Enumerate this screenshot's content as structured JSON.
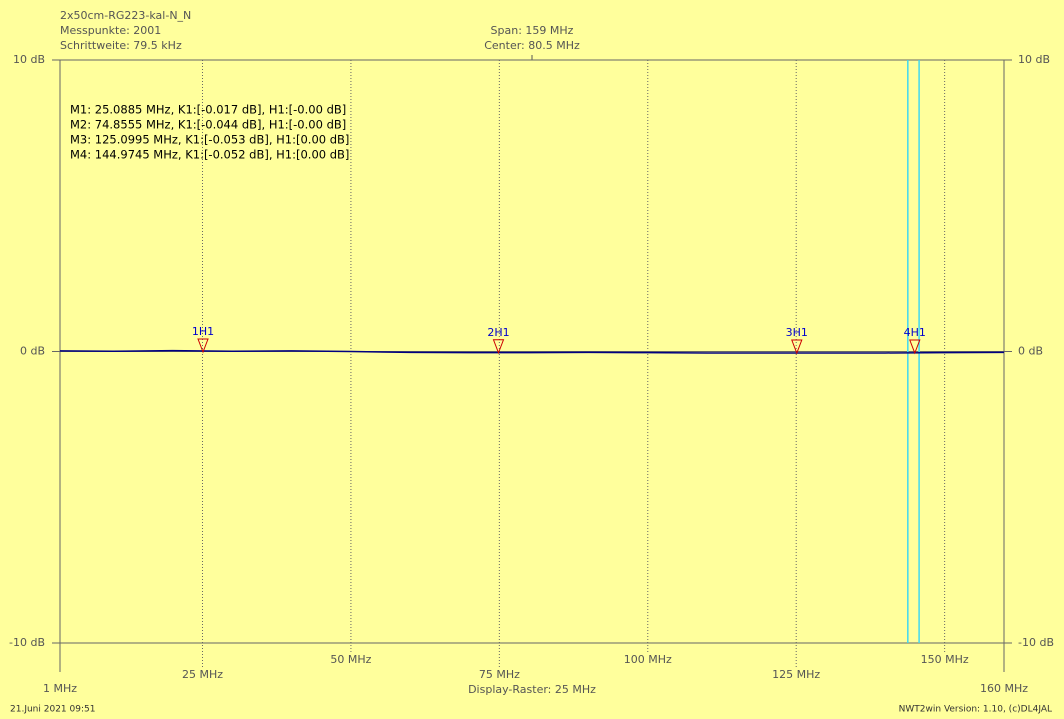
{
  "chart_data": {
    "type": "line",
    "title": "2x50cm-RG223-kal-N_N",
    "info": [
      "Messpunkte: 2001",
      "Schrittweite: 79.5 kHz"
    ],
    "span": "Span: 159 MHz",
    "center_label": "Center: 80.5 MHz",
    "raster": "Display-Raster: 25 MHz",
    "xlim": [
      1,
      160
    ],
    "ylim": [
      -10,
      10
    ],
    "xticks": [
      {
        "value": 1,
        "label": "1 MHz"
      },
      {
        "value": 25,
        "label": "25 MHz"
      },
      {
        "value": 50,
        "label": "50 MHz"
      },
      {
        "value": 75,
        "label": "75 MHz"
      },
      {
        "value": 100,
        "label": "100 MHz"
      },
      {
        "value": 125,
        "label": "125 MHz"
      },
      {
        "value": 150,
        "label": "150 MHz"
      },
      {
        "value": 160,
        "label": "160 MHz"
      }
    ],
    "yticks": [
      {
        "value": 10,
        "label": "10 dB"
      },
      {
        "value": 0,
        "label": "0 dB"
      },
      {
        "value": -10,
        "label": "-10 dB"
      }
    ],
    "grid": true,
    "series": [
      {
        "color": "#000080",
        "x": [
          1,
          10,
          20,
          30,
          40,
          50,
          60,
          70,
          80,
          90,
          100,
          110,
          120,
          130,
          140,
          150,
          160
        ],
        "values": [
          0.02,
          0.01,
          0.03,
          0.01,
          0.02,
          0,
          -0.03,
          -0.04,
          -0.04,
          -0.03,
          -0.04,
          -0.05,
          -0.05,
          -0.05,
          -0.05,
          -0.04,
          -0.03
        ]
      }
    ],
    "markers": [
      {
        "label": "1H1",
        "x": 25.0885,
        "value": -0.017,
        "text": "M1: 25.0885 MHz, K1:[-0.017 dB], H1:[-0.00 dB]"
      },
      {
        "label": "2H1",
        "x": 74.8555,
        "value": -0.044,
        "text": "M2: 74.8555 MHz, K1:[-0.044 dB], H1:[-0.00 dB]"
      },
      {
        "label": "3H1",
        "x": 125.0995,
        "value": -0.053,
        "text": "M3: 125.0995 MHz, K1:[-0.053 dB], H1:[0.00 dB]"
      },
      {
        "label": "4H1",
        "x": 144.9745,
        "value": -0.052,
        "text": "M4: 144.9745 MHz, K1:[-0.052 dB], H1:[0.00 dB]"
      }
    ],
    "marker_color": "#cc0000",
    "marker_label_color": "#0000cc",
    "band_lines": [
      143.8,
      145.7
    ],
    "band_color": "#40d8f0"
  },
  "footer": {
    "date": "21.Juni 2021 09:51",
    "version": "NWT2win Version: 1.10, (c)DL4JAL"
  }
}
